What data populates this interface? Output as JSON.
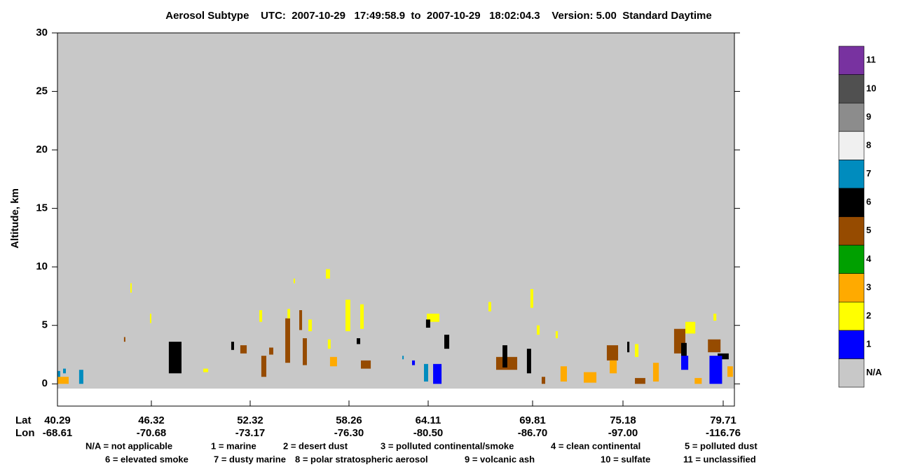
{
  "chart_data": {
    "type": "curtain",
    "title": "Aerosol Subtype    UTC:  2007-10-29   17:49:58.9  to  2007-10-29   18:02:04.3    Version: 5.00  Standard Daytime",
    "y_label": "Altitude, km",
    "ylim": [
      -1.9,
      30
    ],
    "yticks": [
      0,
      5,
      10,
      15,
      20,
      25,
      30
    ],
    "x_row_labels": [
      "Lat",
      "Lon"
    ],
    "xlim": [
      40.29,
      80.22
    ],
    "xticks": [
      40.29,
      46.32,
      52.32,
      58.26,
      64.11,
      69.81,
      75.18,
      79.71
    ],
    "xtick_lon_labels": [
      "-68.61",
      "-70.68",
      "-73.17",
      "-76.30",
      "-80.50",
      "-86.70",
      "-97.00",
      "-116.76"
    ],
    "colorbar": {
      "labels": [
        "N/A",
        "1",
        "2",
        "3",
        "4",
        "5",
        "6",
        "7",
        "8",
        "9",
        "10",
        "11"
      ],
      "colors": [
        "#c8c8c8",
        "#0000ff",
        "#ffff00",
        "#ffaa00",
        "#00a000",
        "#964b00",
        "#000000",
        "#008cbe",
        "#f0f0f0",
        "#8c8c8c",
        "#505050",
        "#7832a0"
      ]
    },
    "legend_lines": [
      [
        "N/A = not applicable",
        "1 = marine",
        "2 = desert dust",
        "3 = polluted continental/smoke",
        "4 = clean continental",
        "5 = polluted dust"
      ],
      [
        "6 = elevated smoke",
        "7 = dusty marine",
        "8 = polar stratospheric aerosol",
        "9 = volcanic ash",
        "10 = sulfate",
        "11 = unclassified"
      ]
    ],
    "patches": [
      {
        "lat": [
          40.29,
          41.01
        ],
        "alt": [
          0,
          0.6
        ],
        "class": 3
      },
      {
        "lat": [
          40.29,
          40.47
        ],
        "alt": [
          0.6,
          1.1
        ],
        "class": 7
      },
      {
        "lat": [
          40.65,
          40.83
        ],
        "alt": [
          0.9,
          1.3
        ],
        "class": 7
      },
      {
        "lat": [
          41.68,
          41.95
        ],
        "alt": [
          0,
          1.2
        ],
        "class": 7
      },
      {
        "lat": [
          44.56,
          44.65
        ],
        "alt": [
          3.6,
          4.0
        ],
        "class": 5
      },
      {
        "lat": [
          44.97,
          45.06
        ],
        "alt": [
          7.8,
          8.6
        ],
        "class": 2
      },
      {
        "lat": [
          46.23,
          46.32
        ],
        "alt": [
          5.2,
          6.0
        ],
        "class": 2
      },
      {
        "lat": [
          47.38,
          48.15
        ],
        "alt": [
          0.9,
          3.6
        ],
        "class": 6
      },
      {
        "lat": [
          49.47,
          49.77
        ],
        "alt": [
          1.0,
          1.3
        ],
        "class": 2
      },
      {
        "lat": [
          51.17,
          51.34
        ],
        "alt": [
          2.9,
          3.6
        ],
        "class": 6
      },
      {
        "lat": [
          51.72,
          52.11
        ],
        "alt": [
          2.6,
          3.3
        ],
        "class": 5
      },
      {
        "lat": [
          52.99,
          53.29
        ],
        "alt": [
          0.6,
          2.4
        ],
        "class": 5
      },
      {
        "lat": [
          52.87,
          53.04
        ],
        "alt": [
          5.3,
          6.3
        ],
        "class": 2
      },
      {
        "lat": [
          53.46,
          53.71
        ],
        "alt": [
          2.5,
          3.1
        ],
        "class": 5
      },
      {
        "lat": [
          54.43,
          54.72
        ],
        "alt": [
          1.8,
          5.6
        ],
        "class": 5
      },
      {
        "lat": [
          54.56,
          54.72
        ],
        "alt": [
          5.6,
          6.4
        ],
        "class": 2
      },
      {
        "lat": [
          54.93,
          55.01
        ],
        "alt": [
          8.6,
          9.0
        ],
        "class": 2
      },
      {
        "lat": [
          55.27,
          55.44
        ],
        "alt": [
          4.6,
          6.3
        ],
        "class": 5
      },
      {
        "lat": [
          55.48,
          55.73
        ],
        "alt": [
          1.6,
          3.9
        ],
        "class": 5
      },
      {
        "lat": [
          55.82,
          56.03
        ],
        "alt": [
          4.5,
          5.5
        ],
        "class": 2
      },
      {
        "lat": [
          56.87,
          57.12
        ],
        "alt": [
          9.0,
          9.8
        ],
        "class": 2
      },
      {
        "lat": [
          56.99,
          57.16
        ],
        "alt": [
          3.0,
          3.8
        ],
        "class": 2
      },
      {
        "lat": [
          57.12,
          57.54
        ],
        "alt": [
          1.5,
          2.3
        ],
        "class": 3
      },
      {
        "lat": [
          58.05,
          58.36
        ],
        "alt": [
          4.5,
          7.2
        ],
        "class": 2
      },
      {
        "lat": [
          58.83,
          59.09
        ],
        "alt": [
          3.4,
          3.9
        ],
        "class": 6
      },
      {
        "lat": [
          59.09,
          59.35
        ],
        "alt": [
          4.7,
          6.8
        ],
        "class": 2
      },
      {
        "lat": [
          59.14,
          59.87
        ],
        "alt": [
          1.3,
          2.0
        ],
        "class": 5
      },
      {
        "lat": [
          62.2,
          62.3
        ],
        "alt": [
          2.1,
          2.4
        ],
        "class": 7
      },
      {
        "lat": [
          62.92,
          63.13
        ],
        "alt": [
          1.6,
          2.0
        ],
        "class": 1
      },
      {
        "lat": [
          63.8,
          64.11
        ],
        "alt": [
          0.2,
          1.7
        ],
        "class": 7
      },
      {
        "lat": [
          64.01,
          64.72
        ],
        "alt": [
          5.3,
          6.0
        ],
        "class": 2
      },
      {
        "lat": [
          63.95,
          64.22
        ],
        "alt": [
          4.8,
          5.5
        ],
        "class": 6
      },
      {
        "lat": [
          64.38,
          64.84
        ],
        "alt": [
          0.0,
          1.7
        ],
        "class": 1
      },
      {
        "lat": [
          64.99,
          65.26
        ],
        "alt": [
          3.0,
          4.2
        ],
        "class": 6
      },
      {
        "lat": [
          67.4,
          67.55
        ],
        "alt": [
          6.2,
          7.0
        ],
        "class": 2
      },
      {
        "lat": [
          67.82,
          68.97
        ],
        "alt": [
          1.2,
          2.3
        ],
        "class": 5
      },
      {
        "lat": [
          68.17,
          68.43
        ],
        "alt": [
          1.4,
          3.3
        ],
        "class": 6
      },
      {
        "lat": [
          69.5,
          69.73
        ],
        "alt": [
          0.9,
          3.0
        ],
        "class": 6
      },
      {
        "lat": [
          69.69,
          69.85
        ],
        "alt": [
          6.5,
          8.1
        ],
        "class": 2
      },
      {
        "lat": [
          70.06,
          70.23
        ],
        "alt": [
          4.2,
          5.0
        ],
        "class": 2
      },
      {
        "lat": [
          71.18,
          71.31
        ],
        "alt": [
          3.9,
          4.5
        ],
        "class": 2
      },
      {
        "lat": [
          70.35,
          70.56
        ],
        "alt": [
          0.0,
          0.6
        ],
        "class": 5
      },
      {
        "lat": [
          71.47,
          71.85
        ],
        "alt": [
          0.2,
          1.5
        ],
        "class": 3
      },
      {
        "lat": [
          72.85,
          73.6
        ],
        "alt": [
          0.1,
          1.0
        ],
        "class": 3
      },
      {
        "lat": [
          74.22,
          74.89
        ],
        "alt": [
          2.0,
          3.3
        ],
        "class": 5
      },
      {
        "lat": [
          74.39,
          74.81
        ],
        "alt": [
          0.9,
          2.0
        ],
        "class": 3
      },
      {
        "lat": [
          75.37,
          75.47
        ],
        "alt": [
          2.7,
          3.6
        ],
        "class": 6
      },
      {
        "lat": [
          75.72,
          75.88
        ],
        "alt": [
          2.3,
          3.4
        ],
        "class": 2
      },
      {
        "lat": [
          75.72,
          76.19
        ],
        "alt": [
          0.0,
          0.5
        ],
        "class": 5
      },
      {
        "lat": [
          76.54,
          76.8
        ],
        "alt": [
          0.2,
          1.8
        ],
        "class": 3
      },
      {
        "lat": [
          77.49,
          78.0
        ],
        "alt": [
          2.6,
          4.7
        ],
        "class": 5
      },
      {
        "lat": [
          78.0,
          78.45
        ],
        "alt": [
          4.3,
          5.3
        ],
        "class": 2
      },
      {
        "lat": [
          77.81,
          78.06
        ],
        "alt": [
          1.6,
          3.5
        ],
        "class": 6
      },
      {
        "lat": [
          77.81,
          78.13
        ],
        "alt": [
          1.2,
          2.4
        ],
        "class": 1
      },
      {
        "lat": [
          78.42,
          78.74
        ],
        "alt": [
          0.0,
          0.5
        ],
        "class": 3
      },
      {
        "lat": [
          79.02,
          79.59
        ],
        "alt": [
          2.7,
          3.8
        ],
        "class": 5
      },
      {
        "lat": [
          79.46,
          79.96
        ],
        "alt": [
          2.1,
          2.6
        ],
        "class": 6
      },
      {
        "lat": [
          79.09,
          79.66
        ],
        "alt": [
          0.0,
          2.4
        ],
        "class": 1
      },
      {
        "lat": [
          79.27,
          79.4
        ],
        "alt": [
          5.4,
          6.0
        ],
        "class": 2
      },
      {
        "lat": [
          79.9,
          80.15
        ],
        "alt": [
          0.6,
          1.5
        ],
        "class": 3
      }
    ]
  }
}
